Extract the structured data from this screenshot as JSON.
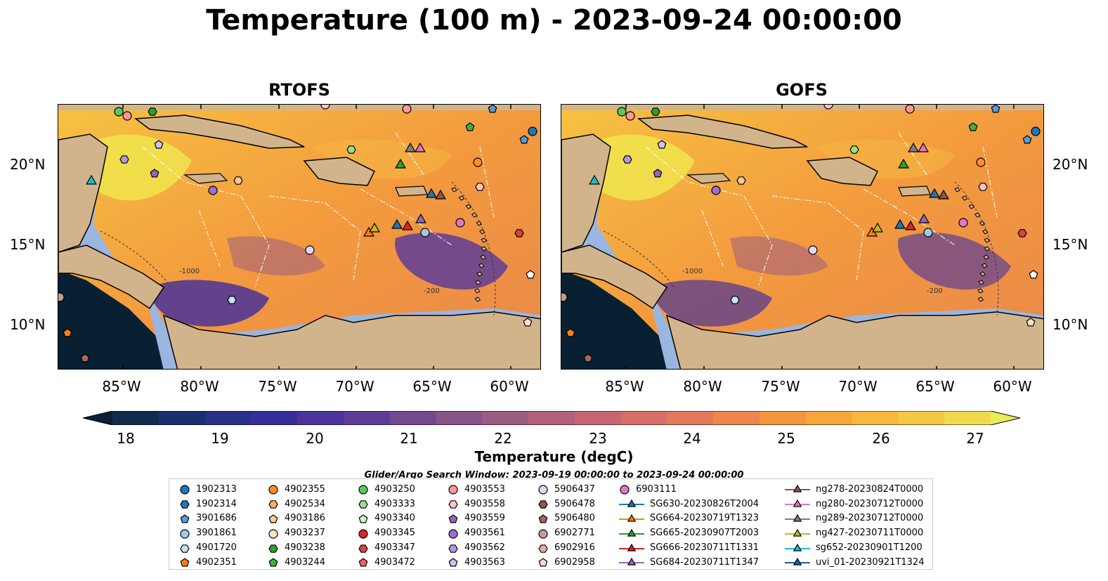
{
  "figure": {
    "title": "Temperature (100 m) - 2023-09-24 00:00:00",
    "panels": [
      {
        "title": "RTOFS"
      },
      {
        "title": "GOFS"
      }
    ],
    "lat_labels": [
      "20°N",
      "15°N",
      "10°N"
    ],
    "lon_labels": [
      "85°W",
      "80°W",
      "75°W",
      "70°W",
      "65°W",
      "60°W"
    ],
    "contour_labels": [
      "-1000",
      "-1000",
      "-200"
    ],
    "colorbar": {
      "label": "Temperature (degC)",
      "ticks": [
        "18",
        "19",
        "20",
        "21",
        "22",
        "23",
        "24",
        "25",
        "26",
        "27"
      ],
      "min": 18,
      "max": 27,
      "extend": "both",
      "colors": [
        "#0b1f33",
        "#132a4e",
        "#1c2e6e",
        "#28308a",
        "#372f99",
        "#4a3399",
        "#5e3d96",
        "#724890",
        "#875389",
        "#9c5c82",
        "#b3607a",
        "#c66672",
        "#d66f67",
        "#e3785a",
        "#ee854d",
        "#f4953f",
        "#f7a63b",
        "#f7b73d",
        "#f5c842",
        "#f0da4b",
        "#e8ec56"
      ]
    },
    "search_window": "Glider/Argo Search Window: 2023-09-19 00:00:00 to 2023-09-24 00:00:00",
    "colors": {
      "land": "#d2b48c",
      "shelf": "#9ab6e0",
      "deep_dark": "#082032"
    },
    "legend": {
      "columns": [
        [
          {
            "label": "1902313",
            "marker": "circle",
            "color": "#1f77b4"
          },
          {
            "label": "1902314",
            "marker": "hexagon",
            "color": "#1f77b4"
          },
          {
            "label": "3901686",
            "marker": "pentagon",
            "color": "#5b9bd5"
          },
          {
            "label": "3901861",
            "marker": "circle",
            "color": "#9ecae9"
          },
          {
            "label": "4901720",
            "marker": "hexagon",
            "color": "#c6e2f5"
          },
          {
            "label": "4902351",
            "marker": "pentagon",
            "color": "#ff7f0e"
          }
        ],
        [
          {
            "label": "4902355",
            "marker": "circle",
            "color": "#ff8c2a"
          },
          {
            "label": "4902534",
            "marker": "hexagon",
            "color": "#ffac60"
          },
          {
            "label": "4903186",
            "marker": "pentagon",
            "color": "#ffc896"
          },
          {
            "label": "4903237",
            "marker": "circle",
            "color": "#ffe4c4"
          },
          {
            "label": "4903238",
            "marker": "hexagon",
            "color": "#2ca02c"
          },
          {
            "label": "4903244",
            "marker": "pentagon",
            "color": "#3cb43c"
          }
        ],
        [
          {
            "label": "4903250",
            "marker": "circle",
            "color": "#5cc85c"
          },
          {
            "label": "4903333",
            "marker": "hexagon",
            "color": "#98df8a"
          },
          {
            "label": "4903340",
            "marker": "pentagon",
            "color": "#d0f5c8"
          },
          {
            "label": "4903345",
            "marker": "circle",
            "color": "#d62728"
          },
          {
            "label": "4903347",
            "marker": "hexagon",
            "color": "#e04040"
          },
          {
            "label": "4903472",
            "marker": "pentagon",
            "color": "#f06060"
          }
        ],
        [
          {
            "label": "4903553",
            "marker": "circle",
            "color": "#ff9896"
          },
          {
            "label": "4903558",
            "marker": "hexagon",
            "color": "#ffc4c2"
          },
          {
            "label": "4903559",
            "marker": "pentagon",
            "color": "#9467bd"
          },
          {
            "label": "4903561",
            "marker": "circle",
            "color": "#9c6fcc"
          },
          {
            "label": "4903562",
            "marker": "hexagon",
            "color": "#b595dc"
          },
          {
            "label": "4903563",
            "marker": "pentagon",
            "color": "#d4bff0"
          }
        ],
        [
          {
            "label": "5906437",
            "marker": "circle",
            "color": "#e5d5f5"
          },
          {
            "label": "5906478",
            "marker": "hexagon",
            "color": "#8c564b"
          },
          {
            "label": "5906480",
            "marker": "pentagon",
            "color": "#a0695c"
          },
          {
            "label": "6902771",
            "marker": "circle",
            "color": "#c49c94"
          },
          {
            "label": "6902916",
            "marker": "hexagon",
            "color": "#e0b0a0"
          },
          {
            "label": "6902958",
            "marker": "pentagon",
            "color": "#f5d6cc"
          }
        ],
        [
          {
            "label": "6903111",
            "marker": "circle",
            "color": "#e377c2"
          },
          {
            "label": "SG630-20230826T2004",
            "marker": "triangle",
            "color": "#1f77b4"
          },
          {
            "label": "SG664-20230719T1323",
            "marker": "triangle",
            "color": "#ff7f0e"
          },
          {
            "label": "SG665-20230907T2003",
            "marker": "triangle",
            "color": "#2ca02c"
          },
          {
            "label": "SG666-20230711T1331",
            "marker": "triangle",
            "color": "#d62728"
          },
          {
            "label": "SG684-20230711T1347",
            "marker": "triangle",
            "color": "#9467bd"
          }
        ],
        [
          {
            "label": "ng278-20230824T0000",
            "marker": "triangle",
            "color": "#8c564b"
          },
          {
            "label": "ng280-20230712T0000",
            "marker": "triangle",
            "color": "#e377c2"
          },
          {
            "label": "ng289-20230712T0000",
            "marker": "triangle",
            "color": "#7f7f7f"
          },
          {
            "label": "ng427-20230711T0000",
            "marker": "triangle",
            "color": "#bcbd22"
          },
          {
            "label": "sg652-20230901T1200",
            "marker": "triangle",
            "color": "#17becf"
          },
          {
            "label": "uvi_01-20230921T1324",
            "marker": "triangle",
            "color": "#1f5f8f"
          }
        ]
      ]
    }
  }
}
